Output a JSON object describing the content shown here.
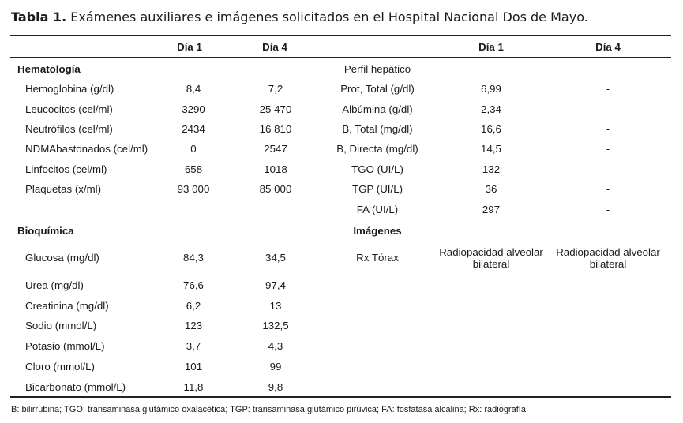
{
  "caption": {
    "label": "Tabla 1.",
    "text": " Exámenes auxiliares e imágenes solicitados en el Hospital Nacional Dos de Mayo."
  },
  "headers": {
    "left_day1": "Día 1",
    "left_day4": "Día 4",
    "right_day1": "Día 1",
    "right_day4": "Día 4"
  },
  "left": {
    "section1": "Hematología",
    "hemato": [
      {
        "name": "Hemoglobina (g/dl)",
        "d1": "8,4",
        "d4": "7,2"
      },
      {
        "name": "Leucocitos (cel/ml)",
        "d1": "3290",
        "d4": "25 470"
      },
      {
        "name": "Neutrófilos (cel/ml)",
        "d1": "2434",
        "d4": "16 810"
      },
      {
        "name": "NDMAbastonados (cel/ml)",
        "d1": "0",
        "d4": "2547"
      },
      {
        "name": "Linfocitos (cel/ml)",
        "d1": "658",
        "d4": "1018"
      },
      {
        "name": "Plaquetas (x/ml)",
        "d1": "93 000",
        "d4": "85 000"
      }
    ],
    "section2": "Bioquímica",
    "bioq": [
      {
        "name": "Glucosa (mg/dl)",
        "d1": "84,3",
        "d4": "34,5"
      },
      {
        "name": "Urea (mg/dl)",
        "d1": "76,6",
        "d4": "97,4"
      },
      {
        "name": "Creatinina (mg/dl)",
        "d1": "6,2",
        "d4": "13"
      },
      {
        "name": "Sodio (mmol/L)",
        "d1": "123",
        "d4": "132,5"
      },
      {
        "name": "Potasio (mmol/L)",
        "d1": "3,7",
        "d4": "4,3"
      },
      {
        "name": "Cloro (mmol/L)",
        "d1": "101",
        "d4": "99"
      },
      {
        "name": "Bicarbonato (mmol/L)",
        "d1": "11,8",
        "d4": "9,8"
      }
    ]
  },
  "right": {
    "section1": "Perfil hepático",
    "hepatic": [
      {
        "name": "Prot, Total (g/dl)",
        "d1": "6,99",
        "d4": "-"
      },
      {
        "name": "Albúmina (g/dl)",
        "d1": "2,34",
        "d4": "-"
      },
      {
        "name": "B, Total (mg/dl)",
        "d1": "16,6",
        "d4": "-"
      },
      {
        "name": "B, Directa (mg/dl)",
        "d1": "14,5",
        "d4": "-"
      },
      {
        "name": "TGO (UI/L)",
        "d1": "132",
        "d4": "-"
      },
      {
        "name": "TGP (UI/L)",
        "d1": "36",
        "d4": "-"
      },
      {
        "name": "FA (UI/L)",
        "d1": "297",
        "d4": "-"
      }
    ],
    "section2": "Imágenes",
    "images": {
      "name": "Rx Tórax",
      "d1": "Radiopacidad alveolar bilateral",
      "d4": "Radiopacidad alveolar bilateral"
    }
  },
  "footnote": "B: bilirrubina; TGO: transaminasa glutámico oxalacética; TGP: transaminasa glutámico pirúvica; FA: fosfatasa alcalina; Rx: radiografía"
}
